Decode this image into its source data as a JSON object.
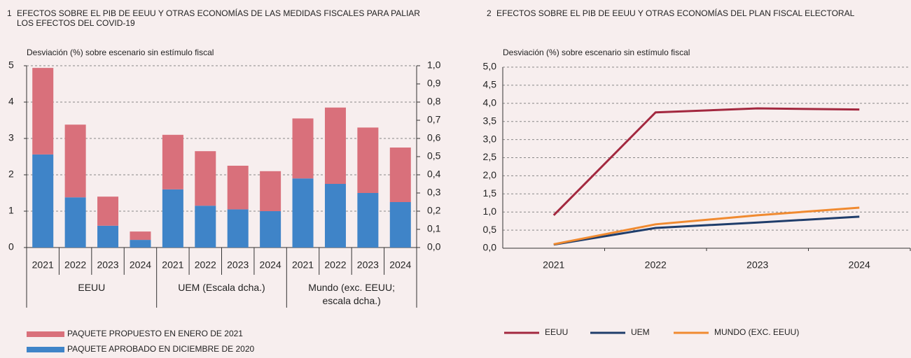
{
  "charts": [
    {
      "type": "bar",
      "stacked": true,
      "number": "1",
      "title": "EFECTOS SOBRE EL PIB DE EEUU Y OTRAS ECONOMÍAS DE LAS MEDIDAS FISCALES PARA PALIAR LOS EFECTOS DEL COVID-19",
      "ylabel": "Desviación (%) sobre escenario sin estímulo fiscal",
      "ylim": [
        0,
        5
      ],
      "yticks": [
        0,
        1,
        2,
        3,
        4,
        5
      ],
      "y2lim": [
        0,
        1
      ],
      "y2ticks": [
        {
          "value": 0,
          "label": "0,0"
        },
        {
          "value": 0.1,
          "label": "0,1"
        },
        {
          "value": 0.2,
          "label": "0,2"
        },
        {
          "value": 0.3,
          "label": "0,3"
        },
        {
          "value": 0.4,
          "label": "0,4"
        },
        {
          "value": 0.5,
          "label": "0,5"
        },
        {
          "value": 0.6,
          "label": "0,6"
        },
        {
          "value": 0.7,
          "label": "0,7"
        },
        {
          "value": 0.8,
          "label": "0,8"
        },
        {
          "value": 0.9,
          "label": "0,9"
        },
        {
          "value": 1,
          "label": "1,0"
        }
      ],
      "grid": true,
      "series": [
        {
          "name": "PAQUETE APROBADO EN DICIEMBRE DE 2020",
          "color": "#3f84c8"
        },
        {
          "name": "PAQUETE PROPUESTO EN ENERO DE 2021",
          "color": "#d9707b"
        }
      ],
      "groups": [
        {
          "label": "EEUU",
          "axis": "y",
          "categories": [
            "2021",
            "2022",
            "2023",
            "2024"
          ],
          "values": [
            [
              2.56,
              1.38,
              0.6,
              0.21
            ],
            [
              2.38,
              2.0,
              0.8,
              0.23
            ]
          ]
        },
        {
          "label": "UEM (Escala dcha.)",
          "axis": "y2",
          "categories": [
            "2021",
            "2022",
            "2023",
            "2024"
          ],
          "values": [
            [
              0.32,
              0.23,
              0.21,
              0.2
            ],
            [
              0.3,
              0.3,
              0.24,
              0.22
            ]
          ]
        },
        {
          "label": "Mundo (exc. EEUU; escala dcha.)",
          "axis": "y2",
          "categories": [
            "2021",
            "2022",
            "2023",
            "2024"
          ],
          "values": [
            [
              0.38,
              0.35,
              0.3,
              0.25
            ],
            [
              0.33,
              0.42,
              0.36,
              0.3
            ]
          ]
        }
      ]
    },
    {
      "type": "line",
      "number": "2",
      "title": "EFECTOS SOBRE EL PIB DE EEUU Y OTRAS ECONOMÍAS DEL PLAN FISCAL ELECTORAL",
      "ylabel": "Desviación (%) sobre escenario sin estímulo fiscal",
      "categories": [
        "2021",
        "2022",
        "2023",
        "2024"
      ],
      "ylim": [
        0,
        5
      ],
      "yticks": [
        {
          "value": 0,
          "label": "0,0"
        },
        {
          "value": 0.5,
          "label": "0,5"
        },
        {
          "value": 1,
          "label": "1,0"
        },
        {
          "value": 1.5,
          "label": "1,5"
        },
        {
          "value": 2,
          "label": "2,0"
        },
        {
          "value": 2.5,
          "label": "2,5"
        },
        {
          "value": 3,
          "label": "3,0"
        },
        {
          "value": 3.5,
          "label": "3,5"
        },
        {
          "value": 4,
          "label": "4,0"
        },
        {
          "value": 4.5,
          "label": "4,5"
        },
        {
          "value": 5,
          "label": "5,0"
        }
      ],
      "grid": true,
      "series": [
        {
          "name": "EEUU",
          "color": "#a3283f",
          "values": [
            0.91,
            3.75,
            3.86,
            3.83
          ]
        },
        {
          "name": "UEM",
          "color": "#1f3d6b",
          "values": [
            0.1,
            0.56,
            0.71,
            0.87
          ]
        },
        {
          "name": "MUNDO (EXC. EEUU)",
          "color": "#f08a30",
          "values": [
            0.11,
            0.66,
            0.91,
            1.12
          ]
        }
      ]
    }
  ]
}
